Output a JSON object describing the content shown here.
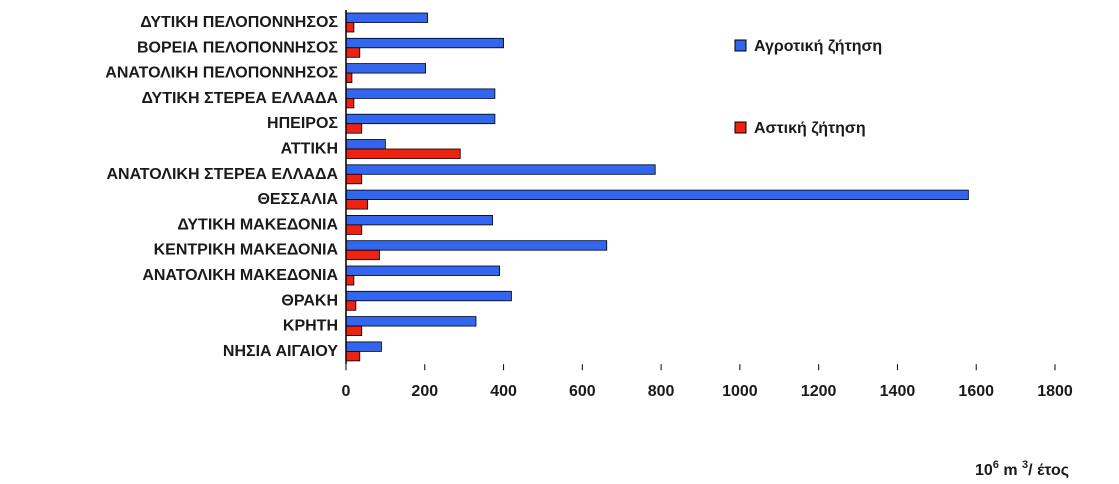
{
  "chart_data": {
    "type": "bar",
    "orientation": "horizontal",
    "categories": [
      "ΔΥΤΙΚΗ ΠΕΛΟΠΟΝΝΗΣΟΣ",
      "ΒΟΡΕΙΑ ΠΕΛΟΠΟΝΝΗΣΟΣ",
      "ΑΝΑΤΟΛΙΚΗ ΠΕΛΟΠΟΝΝΗΣΟΣ",
      "ΔΥΤΙΚΗ ΣΤΕΡΕΑ ΕΛΛΑΔΑ",
      "ΗΠΕΙΡΟΣ",
      "ΑΤΤΙΚΗ",
      "ΑΝΑΤΟΛΙΚΗ ΣΤΕΡΕΑ ΕΛΛΑΔΑ",
      "ΘΕΣΣΑΛΙΑ",
      "ΔΥΤΙΚΗ ΜΑΚΕΔΟΝΙΑ",
      "ΚΕΝΤΡΙΚΗ ΜΑΚΕΔΟΝΙΑ",
      "ΑΝΑΤΟΛΙΚΗ ΜΑΚΕΔΟΝΙΑ",
      "ΘΡΑΚΗ",
      "ΚΡΗΤΗ",
      "ΝΗΣΙΑ ΑΙΓΑΙΟΥ"
    ],
    "series": [
      {
        "name": "Αγροτική ζήτηση",
        "color": "#3366ee",
        "values": [
          207,
          400,
          202,
          378,
          378,
          100,
          785,
          1580,
          372,
          662,
          390,
          420,
          330,
          90
        ]
      },
      {
        "name": "Αστική ζήτηση",
        "color": "#ee2211",
        "values": [
          20,
          35,
          15,
          20,
          40,
          290,
          40,
          55,
          40,
          85,
          20,
          25,
          40,
          35
        ]
      }
    ],
    "xlim": [
      0,
      1800
    ],
    "xticks": [
      "0",
      "200",
      "400",
      "600",
      "800",
      "1000",
      "1200",
      "1400",
      "1600",
      "1800"
    ],
    "xlabel_parts": {
      "base": "10",
      "exp1": "6",
      "mid": " m ",
      "exp2": "3",
      "tail": "/ έτος"
    },
    "legend_position": "top-right",
    "grid": false
  }
}
